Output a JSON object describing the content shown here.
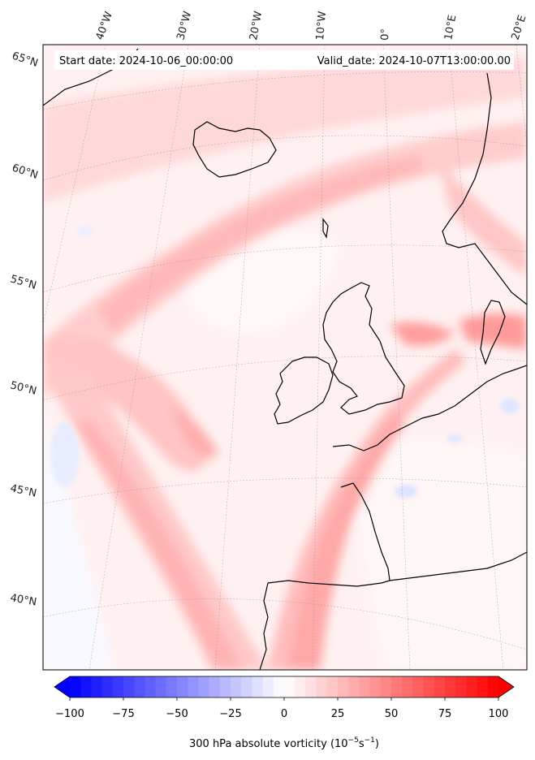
{
  "map": {
    "start_label": "Start date: 2024-10-06_00:00:00",
    "valid_label": "Valid_date: 2024-10-07T13:00:00.00",
    "lat_labels": [
      "65°N",
      "60°N",
      "55°N",
      "50°N",
      "45°N",
      "40°N"
    ],
    "lon_labels": [
      "40°W",
      "30°W",
      "20°W",
      "10°W",
      "0°",
      "10°E",
      "20°E"
    ]
  },
  "colorbar": {
    "ticks": [
      "−100",
      "−75",
      "−50",
      "−25",
      "0",
      "25",
      "50",
      "75",
      "100"
    ],
    "label_main": "300 hPa absolute vorticity (10",
    "label_exp1": "−5",
    "label_mid": "s",
    "label_exp2": "−1",
    "label_end": ")",
    "min": -100,
    "max": 100,
    "colors": {
      "low": "#0000ff",
      "mid": "#ffffff",
      "high": "#ff0000"
    }
  }
}
